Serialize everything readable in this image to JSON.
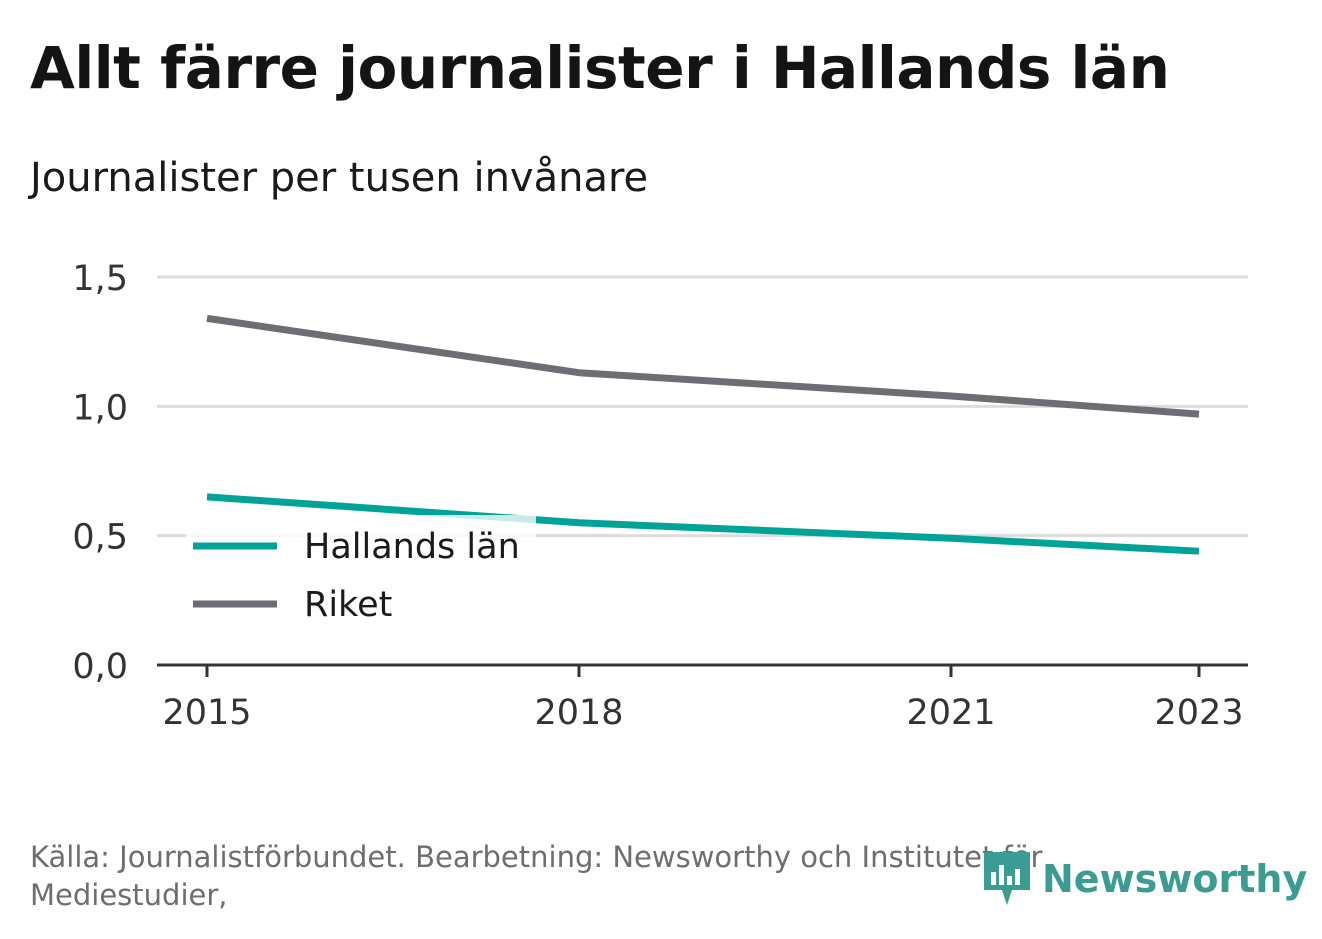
{
  "title": "Allt färre journalister i Hallands län",
  "subtitle": "Journalister per tusen invånare",
  "source": "Källa: Journalistförbundet. Bearbetning: Newsworthy och Institutet för Mediestudier,",
  "brand": "Newsworthy",
  "colors": {
    "hallands": "#00a398",
    "riket": "#6d6e74",
    "grid": "#dddddd",
    "axis": "#333333",
    "brand": "#3a9c92"
  },
  "chart_data": {
    "type": "line",
    "x": [
      2015,
      2018,
      2021,
      2023
    ],
    "xticks": [
      "2015",
      "2018",
      "2021",
      "2023"
    ],
    "ylim": [
      0,
      1.5
    ],
    "yticks": [
      "0,0",
      "0,5",
      "1,0",
      "1,5"
    ],
    "grid": true,
    "legend_placement": "bottom-left",
    "series": [
      {
        "name": "Hallands län",
        "values": [
          0.65,
          0.55,
          0.49,
          0.44
        ]
      },
      {
        "name": "Riket",
        "values": [
          1.34,
          1.13,
          1.04,
          0.97
        ]
      }
    ]
  }
}
